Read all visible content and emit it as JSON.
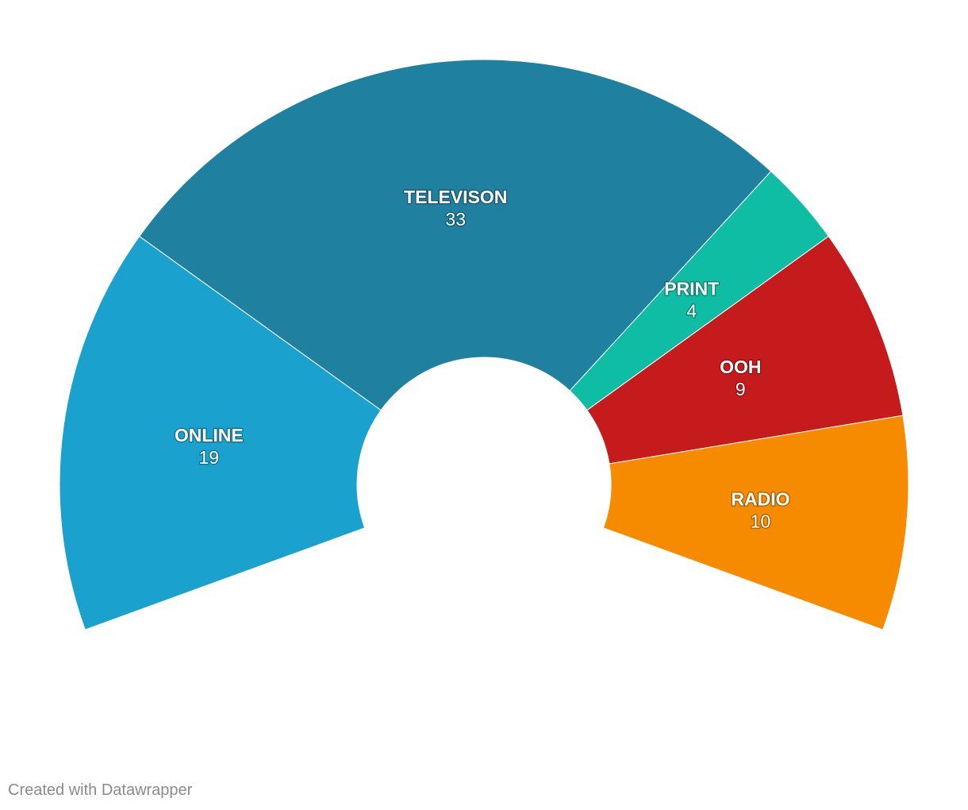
{
  "chart_data": {
    "type": "pie",
    "variant": "half-donut",
    "categories": [
      "ONLINE",
      "TELEVISON",
      "PRINT",
      "OOH",
      "RADIO"
    ],
    "values": [
      19,
      33,
      4,
      9,
      10
    ],
    "colors": [
      "#1aa1cd",
      "#1f80a0",
      "#0ebda3",
      "#c61b1d",
      "#f78b00"
    ],
    "title": "",
    "legend": "labels on slices"
  },
  "footer": {
    "credit": "Created with Datawrapper"
  }
}
